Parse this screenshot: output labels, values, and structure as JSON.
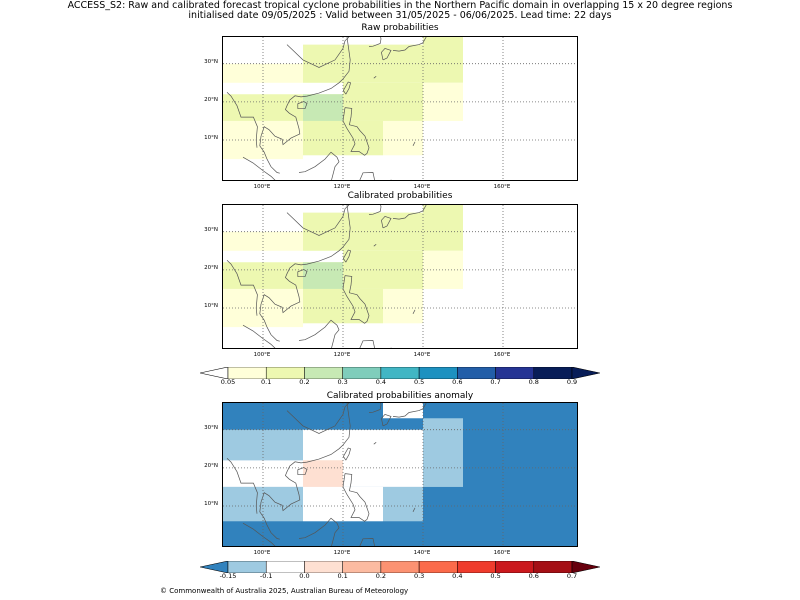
{
  "header": {
    "title_line1": "ACCESS_S2: Raw and calibrated forecast tropical cyclone probabilities in the Northern Pacific domain in overlapping 15 x 20 degree regions",
    "title_line2": "initialised date 09/05/2025 :  Valid between 31/05/2025 - 06/06/2025. Lead time: 22 days"
  },
  "panels": {
    "raw": {
      "title": "Raw probabilities"
    },
    "calibrated": {
      "title": "Calibrated probabilities"
    },
    "anomaly": {
      "title": "Calibrated probabilities anomaly"
    }
  },
  "axes": {
    "x_ticks": [
      "100°E",
      "120°E",
      "140°E",
      "160°E"
    ],
    "y_ticks": [
      "30°N",
      "20°N",
      "10°N"
    ]
  },
  "colorbars": {
    "probability": {
      "labels": [
        "0.05",
        "0.1",
        "0.2",
        "0.3",
        "0.4",
        "0.5",
        "0.6",
        "0.7",
        "0.8",
        "0.9"
      ],
      "colors": [
        "#ffffd9",
        "#edf8b1",
        "#c7e9b4",
        "#7fcdbb",
        "#41b6c4",
        "#1d91c0",
        "#225ea8",
        "#253494",
        "#081d58"
      ],
      "under_color": "#ffffff",
      "over_color": "#081d58"
    },
    "anomaly": {
      "labels": [
        "-0.15",
        "-0.1",
        "0.0",
        "0.1",
        "0.2",
        "0.3",
        "0.4",
        "0.5",
        "0.6",
        "0.7"
      ],
      "colors": [
        "#9ecae1",
        "#ffffff",
        "#fee0d2",
        "#fcbba1",
        "#fc9272",
        "#fb6a4a",
        "#ef3b2c",
        "#cb181d",
        "#a50f15"
      ],
      "under_color": "#3182bd",
      "over_color": "#67000d"
    }
  },
  "map_fills": {
    "raw_calibrated": [
      {
        "lon": [
          90,
          110
        ],
        "lat": [
          25,
          30
        ],
        "color": "#ffffd9"
      },
      {
        "lon": [
          110,
          150
        ],
        "lat": [
          25,
          35
        ],
        "color": "#edf8b1"
      },
      {
        "lon": [
          150,
          150
        ],
        "lat": [
          30,
          35
        ],
        "color": "#edf8b1"
      },
      {
        "lon": [
          140,
          150
        ],
        "lat": [
          30,
          37
        ],
        "color": "#edf8b1"
      },
      {
        "lon": [
          90,
          120
        ],
        "lat": [
          15,
          22
        ],
        "color": "#edf8b1"
      },
      {
        "lon": [
          120,
          140
        ],
        "lat": [
          15,
          25
        ],
        "color": "#edf8b1"
      },
      {
        "lon": [
          140,
          150
        ],
        "lat": [
          15,
          25
        ],
        "color": "#ffffd9"
      },
      {
        "lon": [
          110,
          120
        ],
        "lat": [
          15,
          22
        ],
        "color": "#c7e9b4"
      },
      {
        "lon": [
          90,
          110
        ],
        "lat": [
          5,
          15
        ],
        "color": "#ffffd9"
      },
      {
        "lon": [
          110,
          130
        ],
        "lat": [
          6,
          15
        ],
        "color": "#edf8b1"
      },
      {
        "lon": [
          130,
          140
        ],
        "lat": [
          6,
          15
        ],
        "color": "#ffffd9"
      }
    ],
    "anomaly": [
      {
        "lon": [
          90,
          180
        ],
        "lat": [
          -1,
          37
        ],
        "color": "#3182bd"
      },
      {
        "lon": [
          90,
          110
        ],
        "lat": [
          22,
          30
        ],
        "color": "#9ecae1"
      },
      {
        "lon": [
          110,
          140
        ],
        "lat": [
          15,
          30
        ],
        "color": "#ffffff"
      },
      {
        "lon": [
          140,
          150
        ],
        "lat": [
          15,
          33
        ],
        "color": "#9ecae1"
      },
      {
        "lon": [
          90,
          110
        ],
        "lat": [
          15,
          22
        ],
        "color": "#ffffff"
      },
      {
        "lon": [
          110,
          120
        ],
        "lat": [
          15,
          22
        ],
        "color": "#fee0d2"
      },
      {
        "lon": [
          90,
          110
        ],
        "lat": [
          6,
          15
        ],
        "color": "#9ecae1"
      },
      {
        "lon": [
          110,
          130
        ],
        "lat": [
          6,
          15
        ],
        "color": "#ffffff"
      },
      {
        "lon": [
          130,
          140
        ],
        "lat": [
          6,
          15
        ],
        "color": "#9ecae1"
      },
      {
        "lon": [
          110,
          130
        ],
        "lat": [
          33,
          37
        ],
        "color": "#3182bd"
      },
      {
        "lon": [
          130,
          140
        ],
        "lat": [
          33,
          37
        ],
        "color": "#ffffff"
      }
    ]
  },
  "footer": {
    "text": "© Commonwealth of Australia 2025, Australian Bureau of Meteorology"
  }
}
